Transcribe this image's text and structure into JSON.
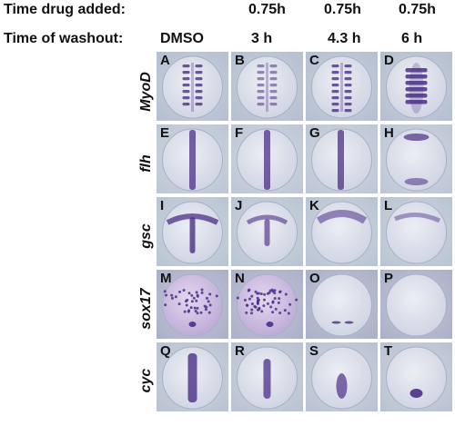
{
  "header": {
    "row1_label": "Time drug added:",
    "row2_label": "Time of washout:",
    "drug_times": [
      "0.75h",
      "0.75h",
      "0.75h"
    ],
    "washout_times": [
      "DMSO",
      "3 h",
      "4.3 h",
      "6 h"
    ]
  },
  "rows": [
    {
      "gene": "MyoD",
      "letters": [
        "A",
        "B",
        "C",
        "D"
      ]
    },
    {
      "gene": "flh",
      "letters": [
        "E",
        "F",
        "G",
        "H"
      ]
    },
    {
      "gene": "gsc",
      "letters": [
        "I",
        "J",
        "K",
        "L"
      ]
    },
    {
      "gene": "sox17",
      "letters": [
        "M",
        "N",
        "O",
        "P"
      ]
    },
    {
      "gene": "cyc",
      "letters": [
        "Q",
        "R",
        "S",
        "T"
      ]
    }
  ],
  "colors": {
    "stain": "#4b2f86",
    "embryo": "#dcdcea",
    "background": "#b9c4d4"
  }
}
